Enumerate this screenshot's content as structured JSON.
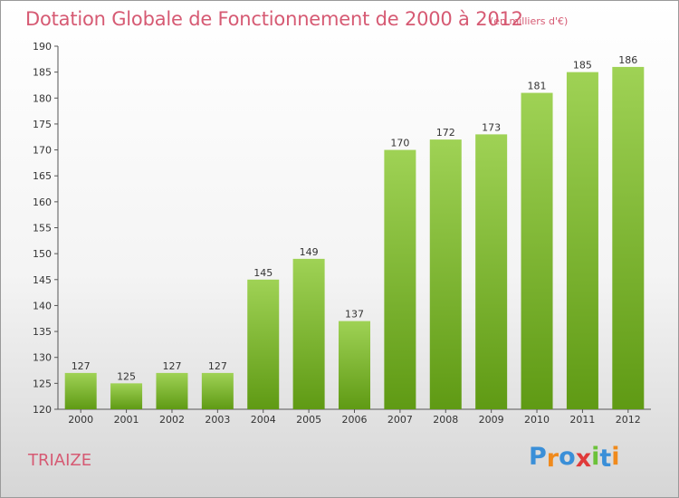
{
  "title": "Dotation Globale de Fonctionnement de 2000 à 2012",
  "subtitle": "(en milliers d'€)",
  "commune": "TRIAIZE",
  "logo": {
    "letters": [
      "P",
      "r",
      "o",
      "x",
      "i",
      "t",
      "i"
    ],
    "colors": [
      "#3a8fd8",
      "#f08a1c",
      "#3a8fd8",
      "#e03a3a",
      "#6cc23a",
      "#3a8fd8",
      "#f08a1c"
    ]
  },
  "colors": {
    "bar_top": "#9fd255",
    "bar_bottom": "#5f9a14",
    "text": "#333333",
    "accent": "#d65a73"
  },
  "chart_data": {
    "type": "bar",
    "title": "Dotation Globale de Fonctionnement de 2000 à 2012",
    "subtitle": "(en milliers d'€)",
    "categories": [
      "2000",
      "2001",
      "2002",
      "2003",
      "2004",
      "2005",
      "2006",
      "2007",
      "2008",
      "2009",
      "2010",
      "2011",
      "2012"
    ],
    "values": [
      127,
      125,
      127,
      127,
      145,
      149,
      137,
      170,
      172,
      173,
      181,
      185,
      186
    ],
    "ylim": [
      120,
      190
    ],
    "yticks": [
      120,
      125,
      130,
      135,
      140,
      145,
      150,
      155,
      160,
      165,
      170,
      175,
      180,
      185,
      190
    ],
    "grid": false,
    "legend": "none"
  }
}
